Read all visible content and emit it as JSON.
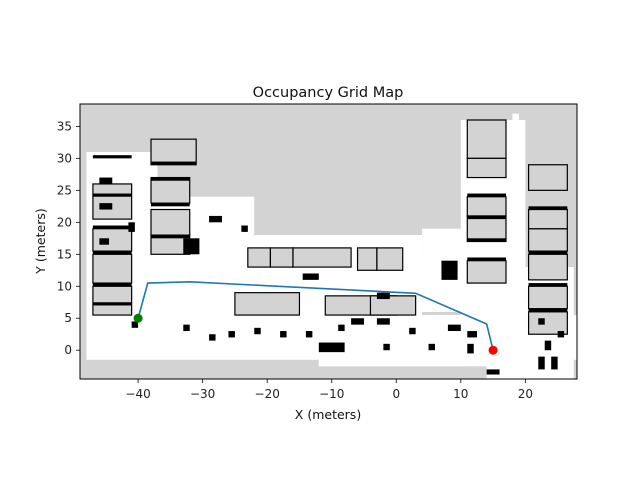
{
  "chart_data": {
    "type": "scatter",
    "title": "Occupancy Grid Map",
    "xlabel": "X (meters)",
    "ylabel": "Y (meters)",
    "xlim": [
      -49,
      28
    ],
    "ylim": [
      -4.5,
      38.5
    ],
    "xticks": [
      -40,
      -30,
      -20,
      -10,
      0,
      10,
      20
    ],
    "yticks": [
      0,
      5,
      10,
      15,
      20,
      25,
      30,
      35
    ],
    "colors": {
      "unknown": "#d3d3d3",
      "free": "#ffffff",
      "occupied": "#000000",
      "path": "#1f77b4",
      "start": "#008000",
      "goal": "#ff0000"
    },
    "series": [
      {
        "name": "",
        "kind": "line",
        "points": [
          [
            -40,
            5
          ],
          [
            -38.5,
            10.5
          ],
          [
            -32,
            10.7
          ],
          [
            3,
            8.9
          ],
          [
            14,
            4.1
          ],
          [
            15,
            0
          ]
        ]
      }
    ],
    "start": [
      -40,
      5
    ],
    "goal": [
      15,
      0
    ],
    "map": {
      "free_regions": [
        [
          -48,
          -1.5,
          58.5,
          5.5
        ],
        [
          -48,
          2,
          -37,
          31
        ],
        [
          -40,
          4,
          -32,
          12
        ],
        [
          -37,
          4,
          -22,
          24
        ],
        [
          -32,
          6,
          17,
          11
        ],
        [
          -22,
          6,
          5,
          14
        ],
        [
          -36,
          4,
          4,
          18
        ],
        [
          -12,
          -2.5,
          10,
          4
        ],
        [
          -12,
          -2.5,
          16,
          4.3
        ],
        [
          10,
          6,
          20,
          12
        ],
        [
          4,
          6,
          20,
          19
        ],
        [
          10,
          5,
          20,
          36
        ],
        [
          18,
          4,
          19,
          37
        ],
        [
          14,
          -4.5,
          27,
          12
        ],
        [
          19,
          -4.5,
          27.5,
          13
        ],
        [
          14,
          -4.5,
          20,
          6
        ],
        [
          -11,
          -2.5,
          14,
          4
        ]
      ],
      "gray_rooms": [
        [
          -47,
          20.5,
          -41,
          26
        ],
        [
          -47,
          10.5,
          -41,
          15
        ],
        [
          -47,
          5.5,
          -41,
          10
        ],
        [
          -47,
          15.5,
          -41,
          19
        ],
        [
          -38,
          29,
          -31,
          33
        ],
        [
          -38,
          23,
          -32,
          27
        ],
        [
          -38,
          18,
          -32,
          22
        ],
        [
          -38,
          15,
          -32,
          18
        ],
        [
          -23,
          13,
          -19.5,
          16
        ],
        [
          -19.5,
          13,
          -16,
          16
        ],
        [
          -16,
          13,
          -7,
          16
        ],
        [
          -6,
          12.5,
          -3,
          16
        ],
        [
          -3,
          12.5,
          1,
          16
        ],
        [
          -25,
          5.5,
          -15,
          9
        ],
        [
          -11,
          5.5,
          0,
          8.5
        ],
        [
          -4,
          5.5,
          3,
          8.5
        ],
        [
          11,
          10.5,
          17,
          14
        ],
        [
          11,
          17,
          17,
          21
        ],
        [
          11,
          21,
          17,
          24
        ],
        [
          11,
          30,
          17,
          36
        ],
        [
          20.5,
          11,
          26.5,
          15
        ],
        [
          20.5,
          15.5,
          26.5,
          19
        ],
        [
          20.5,
          19,
          26.5,
          22
        ],
        [
          20.5,
          25,
          26.5,
          29
        ],
        [
          20.5,
          2.5,
          26.5,
          6
        ],
        [
          20.5,
          6.5,
          26.5,
          10
        ],
        [
          11,
          27,
          17,
          30
        ]
      ],
      "obstacles": [
        [
          -33,
          15,
          -30.5,
          17.5
        ],
        [
          7,
          11,
          9.5,
          14
        ],
        [
          -12,
          -0.3,
          -8,
          1.2
        ],
        [
          -47,
          30,
          -41,
          30.5
        ],
        [
          -47,
          24,
          -41,
          24.5
        ],
        [
          -47,
          19,
          -41,
          19.5
        ],
        [
          -47,
          15,
          -41,
          15.5
        ],
        [
          -47,
          10,
          -41,
          10.5
        ],
        [
          -47,
          7,
          -41,
          7.5
        ],
        [
          -38,
          26.5,
          -32,
          27
        ],
        [
          -38,
          22.5,
          -32,
          23
        ],
        [
          -38,
          17.5,
          -32,
          18
        ],
        [
          -38,
          29,
          -31,
          29.5
        ],
        [
          11,
          24,
          17,
          24.5
        ],
        [
          11,
          20.5,
          17,
          21
        ],
        [
          11,
          17,
          17,
          17.5
        ],
        [
          11,
          14,
          17,
          14.5
        ],
        [
          20.5,
          22,
          26.5,
          22.5
        ],
        [
          20.5,
          15,
          26.5,
          15.5
        ],
        [
          20.5,
          10,
          26.5,
          10.5
        ],
        [
          20.5,
          6,
          26.5,
          6.5
        ],
        [
          -46,
          26,
          -44,
          27
        ],
        [
          -46,
          22,
          -44,
          23
        ],
        [
          -46,
          16.5,
          -44.5,
          17.5
        ],
        [
          -41.5,
          18.5,
          -40.5,
          20
        ],
        [
          -29,
          20,
          -27,
          21
        ],
        [
          -24,
          18.5,
          -23,
          19.5
        ],
        [
          -14.5,
          11,
          -12,
          12
        ],
        [
          -3,
          8,
          -1,
          9
        ],
        [
          -7,
          4,
          -5,
          5
        ],
        [
          -3,
          4,
          -1,
          5
        ],
        [
          8,
          3,
          10,
          4
        ],
        [
          11,
          2,
          12.5,
          3
        ],
        [
          11,
          -0.5,
          12,
          1
        ],
        [
          14,
          -3.8,
          16,
          -3
        ],
        [
          22,
          -3,
          23,
          -1
        ],
        [
          24,
          -3,
          25,
          -1
        ],
        [
          23,
          0,
          24,
          1.5
        ],
        [
          25,
          2,
          26,
          3
        ],
        [
          22,
          4,
          23,
          5
        ],
        [
          -29,
          1.5,
          -28,
          2.5
        ],
        [
          -26,
          2,
          -25,
          3
        ],
        [
          -22,
          2.5,
          -21,
          3.5
        ],
        [
          -18,
          2,
          -17,
          3
        ],
        [
          -14,
          2,
          -13,
          3
        ],
        [
          -9,
          3,
          -8,
          4
        ],
        [
          2,
          2.5,
          3,
          3.5
        ],
        [
          -2,
          0,
          -1,
          1
        ],
        [
          5,
          0,
          6,
          1
        ],
        [
          -33,
          3,
          -32,
          4
        ],
        [
          -41,
          3.5,
          -40,
          4.5
        ]
      ]
    }
  }
}
